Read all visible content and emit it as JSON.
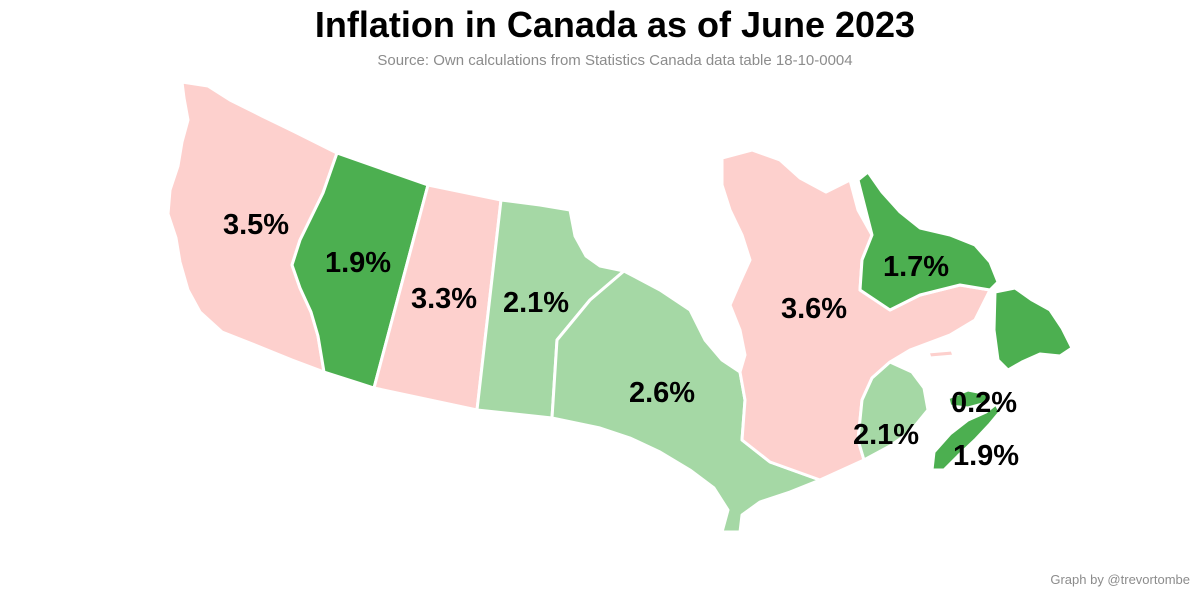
{
  "title": "Inflation in Canada as of June 2023",
  "subtitle": "Source: Own calculations from Statistics Canada data table 18-10-0004",
  "credit": "Graph by @trevortombe",
  "colors": {
    "above_3": "#fdd0cd",
    "mid": "#a5d8a5",
    "low": "#4caf50",
    "label": "#000000",
    "muted": "#8c8c8c"
  },
  "provinces": [
    {
      "id": "bc",
      "value": 3.5,
      "label": "3.5%",
      "color": "#fdd0cd"
    },
    {
      "id": "ab",
      "value": 1.9,
      "label": "1.9%",
      "color": "#4caf50"
    },
    {
      "id": "sk",
      "value": 3.3,
      "label": "3.3%",
      "color": "#fdd0cd"
    },
    {
      "id": "mb",
      "value": 2.1,
      "label": "2.1%",
      "color": "#a5d8a5"
    },
    {
      "id": "on",
      "value": 2.6,
      "label": "2.6%",
      "color": "#a5d8a5"
    },
    {
      "id": "qc",
      "value": 3.6,
      "label": "3.6%",
      "color": "#fdd0cd"
    },
    {
      "id": "nl",
      "value": 1.7,
      "label": "1.7%",
      "color": "#4caf50"
    },
    {
      "id": "nb",
      "value": 2.1,
      "label": "2.1%",
      "color": "#a5d8a5"
    },
    {
      "id": "pe",
      "value": 0.2,
      "label": "0.2%",
      "color": "#4caf50"
    },
    {
      "id": "ns",
      "value": 1.9,
      "label": "1.9%",
      "color": "#4caf50"
    }
  ]
}
